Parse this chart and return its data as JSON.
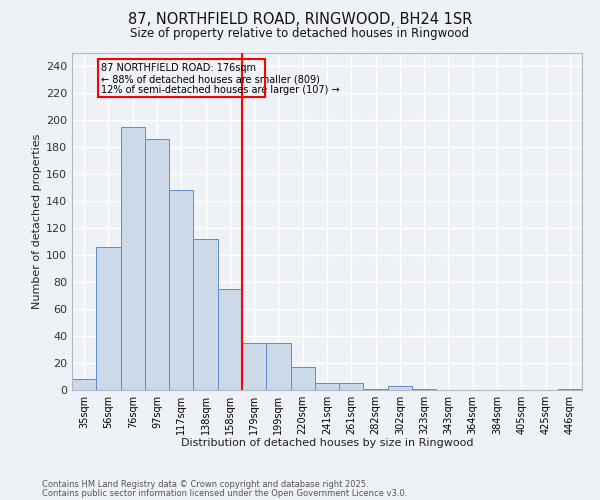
{
  "title": "87, NORTHFIELD ROAD, RINGWOOD, BH24 1SR",
  "subtitle": "Size of property relative to detached houses in Ringwood",
  "xlabel": "Distribution of detached houses by size in Ringwood",
  "ylabel": "Number of detached properties",
  "bar_color": "#ccd9e8",
  "bar_edge_color": "#5b8fc9",
  "bins": [
    "35sqm",
    "56sqm",
    "76sqm",
    "97sqm",
    "117sqm",
    "138sqm",
    "158sqm",
    "179sqm",
    "199sqm",
    "220sqm",
    "241sqm",
    "261sqm",
    "282sqm",
    "302sqm",
    "323sqm",
    "343sqm",
    "364sqm",
    "384sqm",
    "405sqm",
    "425sqm",
    "446sqm"
  ],
  "values": [
    8,
    106,
    195,
    186,
    148,
    112,
    75,
    35,
    35,
    17,
    5,
    5,
    1,
    3,
    1,
    0,
    0,
    0,
    0,
    0,
    1
  ],
  "vline_bin_index": 7,
  "annotation_lines": [
    "87 NORTHFIELD ROAD: 176sqm",
    "← 88% of detached houses are smaller (809)",
    "12% of semi-detached houses are larger (107) →"
  ],
  "ylim": [
    0,
    250
  ],
  "yticks": [
    0,
    20,
    40,
    60,
    80,
    100,
    120,
    140,
    160,
    180,
    200,
    220,
    240
  ],
  "background_color": "#eef2f7",
  "grid_color": "#ffffff",
  "footer_line1": "Contains HM Land Registry data © Crown copyright and database right 2025.",
  "footer_line2": "Contains public sector information licensed under the Open Government Licence v3.0."
}
